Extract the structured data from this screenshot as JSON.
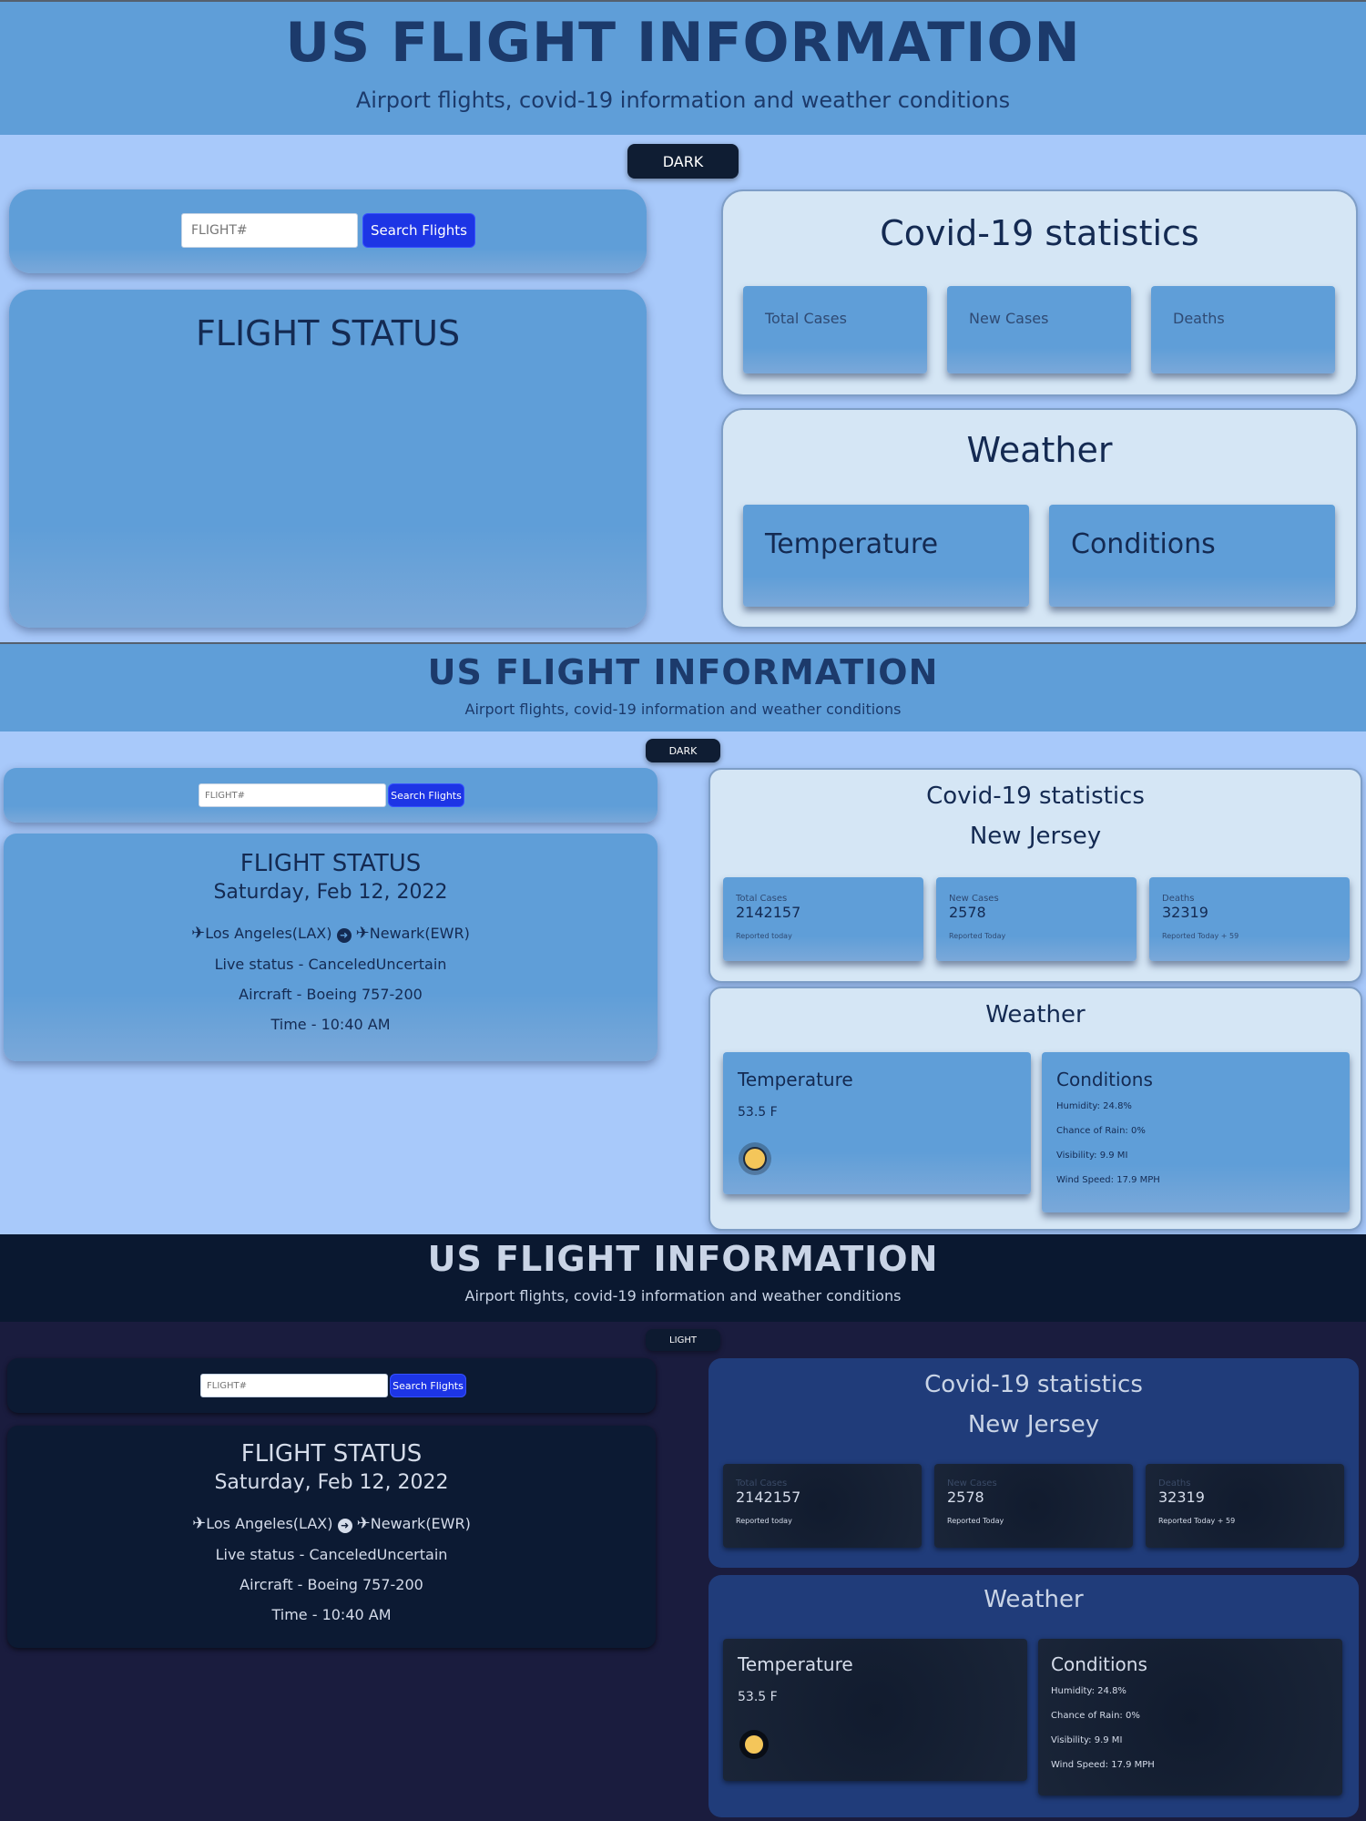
{
  "title": "US FLIGHT INFORMATION",
  "subtitle": "Airport flights, covid-19 information and weather conditions",
  "dark_label": "DARK",
  "light_label": "LIGHT",
  "input_placeholder": "FLIGHT#",
  "search_label": "Search Flights",
  "flight_status_title": "FLIGHT STATUS",
  "flight": {
    "date": "Saturday, Feb 12, 2022",
    "from": "Los Angeles(LAX)",
    "to": "Newark(EWR)",
    "live_status": "Live status - CanceledUncertain",
    "aircraft": "Aircraft - Boeing 757-200",
    "time": "Time - 10:40 AM"
  },
  "covid": {
    "title": "Covid-19 statistics",
    "state": "New Jersey",
    "total_label": "Total Cases",
    "total_value": "2142157",
    "total_note": "Reported today",
    "new_label": "New Cases",
    "new_value": "2578",
    "new_note": "Reported Today",
    "deaths_label": "Deaths",
    "deaths_value": "32319",
    "deaths_note": "Reported Today + 59"
  },
  "weather": {
    "title": "Weather",
    "temp_label": "Temperature",
    "temp_value": "53.5 F",
    "cond_label": "Conditions",
    "humidity": "Humidity: 24.8%",
    "rain": "Chance of Rain: 0%",
    "visibility": "Visibility: 9.9 MI",
    "wind": "Wind Speed: 17.9 MPH"
  },
  "colors": {
    "light_bg": "#a8c9fa",
    "header_blue": "#5f9ed8",
    "button_blue": "#1d35e5",
    "dark_bg": "#1a1c3e",
    "dark_header": "#0a1830",
    "dark_panel": "#203c7a"
  },
  "icons": [
    "plane-departure-icon",
    "arrow-right-circle-icon",
    "plane-arrival-icon",
    "sun-icon"
  ]
}
